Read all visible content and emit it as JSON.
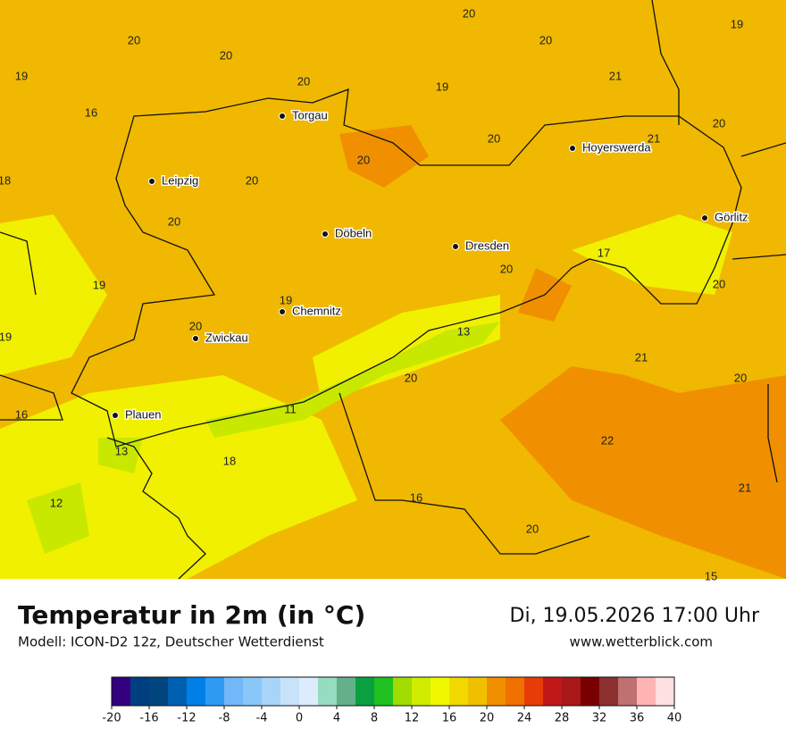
{
  "header": {
    "title": "Temperatur in 2m (in °C)",
    "subtitle": "Modell: ICON-D2 12z, Deutscher Wetterdienst",
    "datetime": "Di, 19.05.2026 17:00 Uhr",
    "website": "www.wetterblick.com"
  },
  "map": {
    "cities": [
      "Torgau",
      "Leipzig",
      "Döbeln",
      "Dresden",
      "Hoyerswerda",
      "Görlitz",
      "Chemnitz",
      "Zwickau",
      "Plauen"
    ],
    "temperature_labels": [
      20,
      19,
      20,
      20,
      20,
      19,
      21,
      20,
      19,
      16,
      20,
      20,
      21,
      20,
      18,
      20,
      20,
      17,
      20,
      19,
      20,
      19,
      20,
      19,
      13,
      21,
      20,
      20,
      16,
      11,
      22,
      13,
      18,
      21,
      16,
      12,
      20,
      15
    ]
  },
  "colorbar": {
    "min": -20,
    "max": 40,
    "ticks": [
      -20,
      -16,
      -12,
      -8,
      -4,
      0,
      4,
      8,
      12,
      16,
      20,
      24,
      28,
      32,
      36,
      40
    ],
    "colors": [
      "#33007f",
      "#003f7f",
      "#00457e",
      "#0060b0",
      "#0080e6",
      "#2e9af2",
      "#72b8f8",
      "#8ac6f8",
      "#a8d4fa",
      "#c8e2fa",
      "#dcecfc",
      "#96dcc0",
      "#64b08a",
      "#0aa040",
      "#20c020",
      "#a0dc00",
      "#d0ec00",
      "#f0f800",
      "#f0d800",
      "#f0c000",
      "#f09000",
      "#f07000",
      "#e83c08",
      "#c01818",
      "#a81818",
      "#780000",
      "#8c3030",
      "#c07070",
      "#ffb4b4",
      "#ffe0e0"
    ]
  }
}
